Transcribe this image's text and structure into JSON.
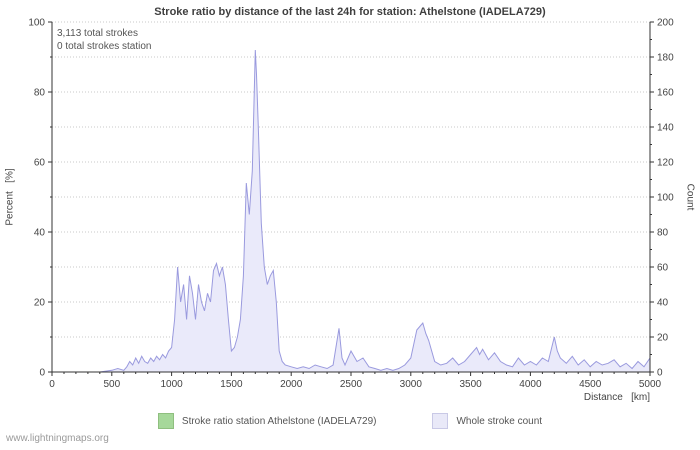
{
  "page": {
    "watermark": "www.lightningmaps.org"
  },
  "chart_data": {
    "type": "area",
    "title": "Stroke ratio by distance of the last 24h for station: Athelstone (IADELA729)",
    "xlabel": "Distance   [km]",
    "ylabel_left": "Percent   [%]",
    "ylabel_right": "Count",
    "annotations": [
      "3,113 total strokes",
      "0 total strokes station"
    ],
    "x_range": [
      0,
      5000
    ],
    "x_tick_step": 500,
    "x_minor_step": 100,
    "left_axis": {
      "range": [
        0,
        100
      ],
      "tick_step": 20,
      "minor_step": 10
    },
    "right_axis": {
      "range": [
        0,
        200
      ],
      "tick_step": 20,
      "minor_step": 10
    },
    "grid_step": 10,
    "grid_color": "#c9c9c9",
    "legend_position": "bottom",
    "series": [
      {
        "name": "Stroke ratio station Athelstone (IADELA729)",
        "axis": "left",
        "color": "#a6d89a",
        "swatch": "#a6d89a",
        "swatch_border": "#8fbf7f",
        "points": [
          [
            0,
            0
          ],
          [
            5000,
            0
          ]
        ]
      },
      {
        "name": "Whole stroke count",
        "axis": "right",
        "fill": "#eaeafa",
        "line_color": "#9a9ade",
        "swatch": "#e9e9f8",
        "swatch_border": "#c9c9e6",
        "points": [
          [
            0,
            0
          ],
          [
            100,
            0
          ],
          [
            200,
            0
          ],
          [
            300,
            0
          ],
          [
            400,
            0
          ],
          [
            500,
            1
          ],
          [
            550,
            2
          ],
          [
            600,
            1
          ],
          [
            625,
            3
          ],
          [
            650,
            6
          ],
          [
            675,
            4
          ],
          [
            700,
            8
          ],
          [
            725,
            5
          ],
          [
            750,
            9
          ],
          [
            775,
            6
          ],
          [
            800,
            5
          ],
          [
            825,
            8
          ],
          [
            850,
            6
          ],
          [
            875,
            9
          ],
          [
            900,
            7
          ],
          [
            925,
            10
          ],
          [
            950,
            8
          ],
          [
            975,
            12
          ],
          [
            1000,
            14
          ],
          [
            1025,
            30
          ],
          [
            1050,
            60
          ],
          [
            1075,
            40
          ],
          [
            1100,
            50
          ],
          [
            1125,
            30
          ],
          [
            1150,
            55
          ],
          [
            1175,
            45
          ],
          [
            1200,
            30
          ],
          [
            1225,
            50
          ],
          [
            1250,
            40
          ],
          [
            1275,
            35
          ],
          [
            1300,
            45
          ],
          [
            1325,
            40
          ],
          [
            1350,
            58
          ],
          [
            1375,
            62
          ],
          [
            1400,
            55
          ],
          [
            1425,
            60
          ],
          [
            1450,
            50
          ],
          [
            1475,
            30
          ],
          [
            1500,
            12
          ],
          [
            1525,
            14
          ],
          [
            1550,
            20
          ],
          [
            1575,
            30
          ],
          [
            1600,
            55
          ],
          [
            1625,
            108
          ],
          [
            1650,
            90
          ],
          [
            1675,
            115
          ],
          [
            1700,
            184
          ],
          [
            1710,
            170
          ],
          [
            1725,
            140
          ],
          [
            1750,
            85
          ],
          [
            1775,
            60
          ],
          [
            1800,
            50
          ],
          [
            1825,
            55
          ],
          [
            1850,
            58
          ],
          [
            1875,
            40
          ],
          [
            1900,
            12
          ],
          [
            1925,
            6
          ],
          [
            1950,
            4
          ],
          [
            2000,
            3
          ],
          [
            2050,
            2
          ],
          [
            2100,
            3
          ],
          [
            2150,
            2
          ],
          [
            2200,
            4
          ],
          [
            2250,
            3
          ],
          [
            2300,
            2
          ],
          [
            2350,
            4
          ],
          [
            2400,
            25
          ],
          [
            2425,
            8
          ],
          [
            2450,
            4
          ],
          [
            2500,
            12
          ],
          [
            2550,
            6
          ],
          [
            2600,
            8
          ],
          [
            2650,
            3
          ],
          [
            2700,
            2
          ],
          [
            2750,
            1
          ],
          [
            2800,
            2
          ],
          [
            2850,
            1
          ],
          [
            2900,
            2
          ],
          [
            2950,
            4
          ],
          [
            3000,
            8
          ],
          [
            3050,
            24
          ],
          [
            3075,
            26
          ],
          [
            3100,
            28
          ],
          [
            3125,
            22
          ],
          [
            3150,
            18
          ],
          [
            3200,
            6
          ],
          [
            3250,
            4
          ],
          [
            3300,
            5
          ],
          [
            3350,
            8
          ],
          [
            3400,
            4
          ],
          [
            3450,
            6
          ],
          [
            3500,
            10
          ],
          [
            3550,
            14
          ],
          [
            3575,
            10
          ],
          [
            3600,
            13
          ],
          [
            3650,
            7
          ],
          [
            3700,
            11
          ],
          [
            3750,
            6
          ],
          [
            3800,
            4
          ],
          [
            3850,
            3
          ],
          [
            3900,
            8
          ],
          [
            3950,
            4
          ],
          [
            4000,
            6
          ],
          [
            4050,
            4
          ],
          [
            4100,
            8
          ],
          [
            4150,
            6
          ],
          [
            4200,
            20
          ],
          [
            4225,
            12
          ],
          [
            4250,
            8
          ],
          [
            4300,
            5
          ],
          [
            4350,
            9
          ],
          [
            4400,
            4
          ],
          [
            4450,
            7
          ],
          [
            4500,
            3
          ],
          [
            4550,
            6
          ],
          [
            4600,
            4
          ],
          [
            4650,
            5
          ],
          [
            4700,
            7
          ],
          [
            4750,
            3
          ],
          [
            4800,
            5
          ],
          [
            4850,
            2
          ],
          [
            4900,
            6
          ],
          [
            4950,
            3
          ],
          [
            5000,
            8
          ]
        ]
      }
    ]
  }
}
